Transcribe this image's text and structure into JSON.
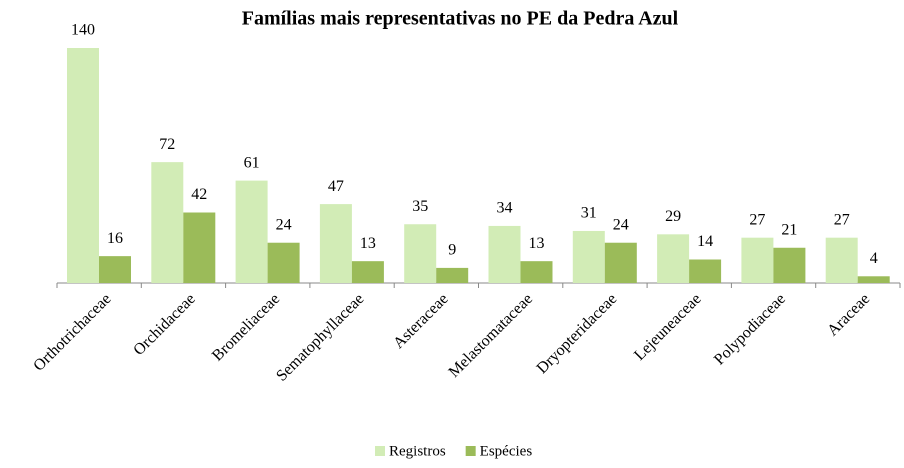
{
  "chart_data": {
    "type": "bar",
    "title": "Famílias mais representativas no PE da Pedra Azul",
    "categories": [
      "Orthotrichaceae",
      "Orchidaceae",
      "Bromeliaceae",
      "Sematophyllaceae",
      "Asteraceae",
      "Melastomataceae",
      "Dryopteridaceae",
      "Lejeuneaceae",
      "Polypodiaceae",
      "Araceae"
    ],
    "series": [
      {
        "name": "Registros",
        "color": "#d2ecb6",
        "values": [
          140,
          72,
          61,
          47,
          35,
          34,
          31,
          29,
          27,
          27
        ]
      },
      {
        "name": "Espécies",
        "color": "#9bbb59",
        "values": [
          16,
          42,
          24,
          13,
          9,
          13,
          24,
          14,
          21,
          4
        ]
      }
    ],
    "legend": "bottom"
  }
}
